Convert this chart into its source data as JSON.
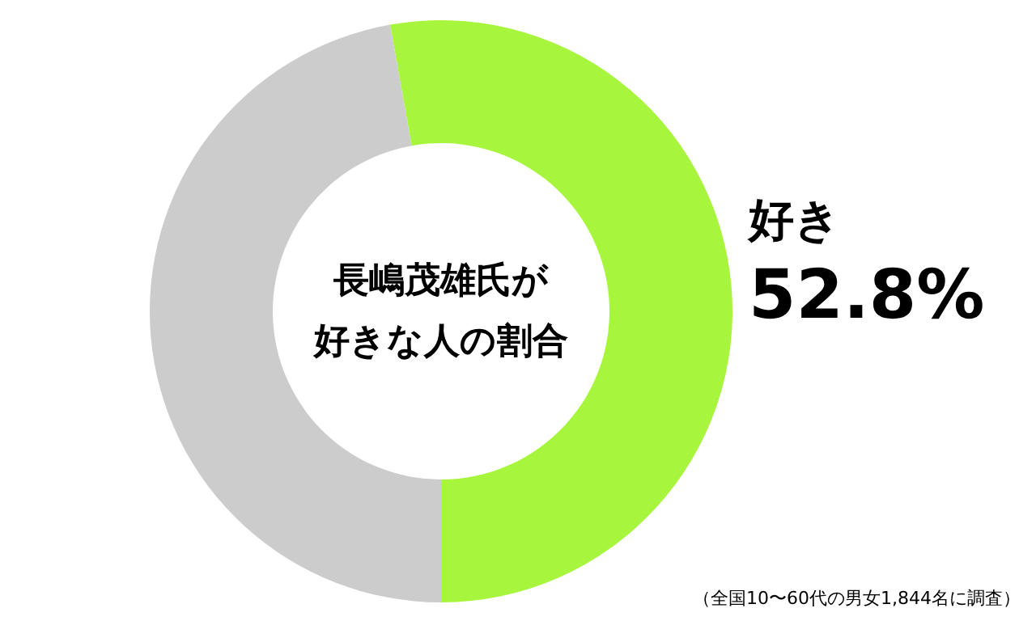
{
  "chart_data": {
    "type": "donut",
    "title": "長嶋茂雄氏が好きな人の割合",
    "categories": [
      "好き",
      null
    ],
    "values": [
      52.8,
      47.2
    ],
    "colors": [
      "#a8f53e",
      "#cccccc"
    ],
    "value_labels": [
      "52.8%",
      null
    ],
    "annotations": [
      "（全国10〜60代の男女1,844名に調査）"
    ]
  }
}
